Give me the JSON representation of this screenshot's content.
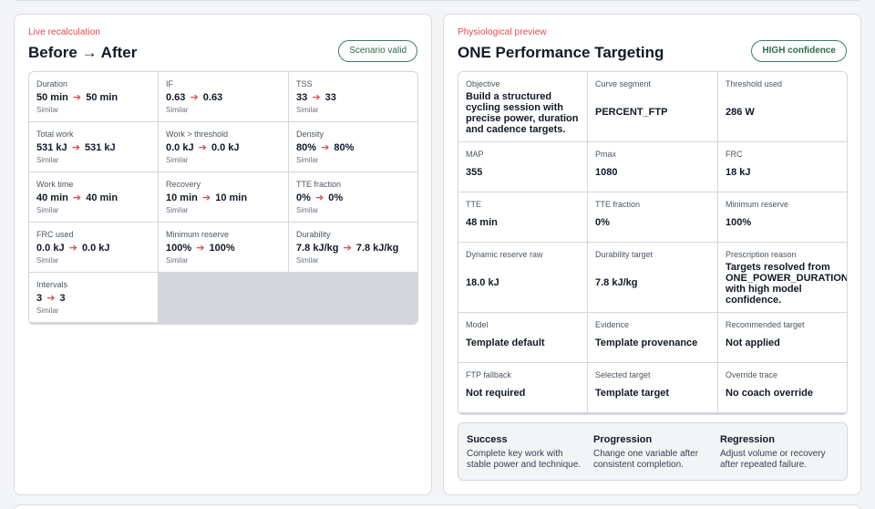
{
  "left_panel": {
    "eyebrow": "Live recalculation",
    "title": "Before → After",
    "badge": "Scenario valid",
    "metrics": [
      {
        "label": "Duration",
        "before": "50 min",
        "after": "50 min",
        "note": "Similar"
      },
      {
        "label": "IF",
        "before": "0.63",
        "after": "0.63",
        "note": "Similar"
      },
      {
        "label": "TSS",
        "before": "33",
        "after": "33",
        "note": "Similar"
      },
      {
        "label": "Total work",
        "before": "531 kJ",
        "after": "531 kJ",
        "note": "Similar"
      },
      {
        "label": "Work > threshold",
        "before": "0.0 kJ",
        "after": "0.0 kJ",
        "note": "Similar"
      },
      {
        "label": "Density",
        "before": "80%",
        "after": "80%",
        "note": "Similar"
      },
      {
        "label": "Work time",
        "before": "40 min",
        "after": "40 min",
        "note": "Similar"
      },
      {
        "label": "Recovery",
        "before": "10 min",
        "after": "10 min",
        "note": "Similar"
      },
      {
        "label": "TTE fraction",
        "before": "0%",
        "after": "0%",
        "note": "Similar"
      },
      {
        "label": "FRC used",
        "before": "0.0 kJ",
        "after": "0.0 kJ",
        "note": "Similar"
      },
      {
        "label": "Minimum reserve",
        "before": "100%",
        "after": "100%",
        "note": "Similar"
      },
      {
        "label": "Durability",
        "before": "7.8 kJ/kg",
        "after": "7.8 kJ/kg",
        "note": "Similar"
      },
      {
        "label": "Intervals",
        "before": "3",
        "after": "3",
        "note": "Similar"
      }
    ],
    "arrow_glyph": "➔"
  },
  "right_panel": {
    "eyebrow": "Physiological preview",
    "title": "ONE Performance Targeting",
    "badge": "HIGH confidence",
    "fields": [
      {
        "label": "Objective",
        "value": "Build a structured cycling session with precise power, duration and cadence targets."
      },
      {
        "label": "Curve segment",
        "value": "PERCENT_FTP"
      },
      {
        "label": "Threshold used",
        "value": "286 W"
      },
      {
        "label": "MAP",
        "value": "355"
      },
      {
        "label": "Pmax",
        "value": "1080"
      },
      {
        "label": "FRC",
        "value": "18 kJ"
      },
      {
        "label": "TTE",
        "value": "48 min"
      },
      {
        "label": "TTE fraction",
        "value": "0%"
      },
      {
        "label": "Minimum reserve",
        "value": "100%"
      },
      {
        "label": "Dynamic reserve raw",
        "value": "18.0 kJ"
      },
      {
        "label": "Durability target",
        "value": "7.8 kJ/kg"
      },
      {
        "label": "Prescription reason",
        "value": "Targets resolved from ONE_POWER_DURATION with high model confidence."
      },
      {
        "label": "Model",
        "value": "Template default"
      },
      {
        "label": "Evidence",
        "value": "Template provenance"
      },
      {
        "label": "Recommended target",
        "value": "Not applied"
      },
      {
        "label": "FTP fallback",
        "value": "Not required"
      },
      {
        "label": "Selected target",
        "value": "Template target"
      },
      {
        "label": "Override trace",
        "value": "No coach override"
      }
    ],
    "summary": [
      {
        "title": "Success",
        "desc": "Complete key work with stable power and technique."
      },
      {
        "title": "Progression",
        "desc": "Change one variable after consistent completion."
      },
      {
        "title": "Regression",
        "desc": "Adjust volume or recovery after repeated failure."
      }
    ]
  },
  "colors": {
    "accent_red": "#e5484d",
    "badge_green": "#2f6a4d",
    "border": "#d4d6db"
  }
}
